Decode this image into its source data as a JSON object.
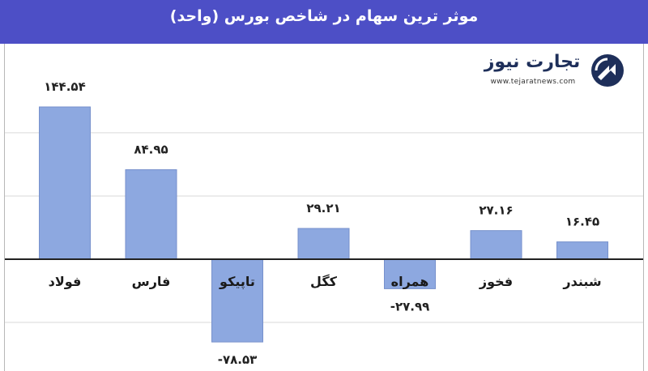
{
  "header": {
    "title": "موثر ترین سهام در شاخص بورس (واحد)",
    "background": "#4d4fc6"
  },
  "logo": {
    "brand_text": "تجارت نیوز",
    "url_text": "www.tejaratnews.com",
    "icon": "tejarat-news-logo-mark",
    "colors": {
      "navy": "#1e2f5a",
      "red": "#e2231a"
    }
  },
  "chart_data": {
    "type": "bar",
    "categories": [
      "فولاد",
      "فارس",
      "تاپیکو",
      "کگل",
      "همراه",
      "فخوز",
      "شبندر"
    ],
    "values": [
      144.54,
      84.95,
      -78.53,
      29.21,
      -27.99,
      27.16,
      16.45
    ],
    "value_labels": [
      "۱۴۴.۵۴",
      "۸۴.۹۵",
      "-۷۸.۵۳",
      "۲۹.۲۱",
      "-۲۷.۹۹",
      "۲۷.۱۶",
      "۱۶.۴۵"
    ],
    "ylim": [
      -90,
      175
    ],
    "gridlines": [
      -60,
      60,
      120
    ],
    "grid": true,
    "bar_color": "#8da8e0",
    "bar_edge_color": "#7791cc"
  }
}
